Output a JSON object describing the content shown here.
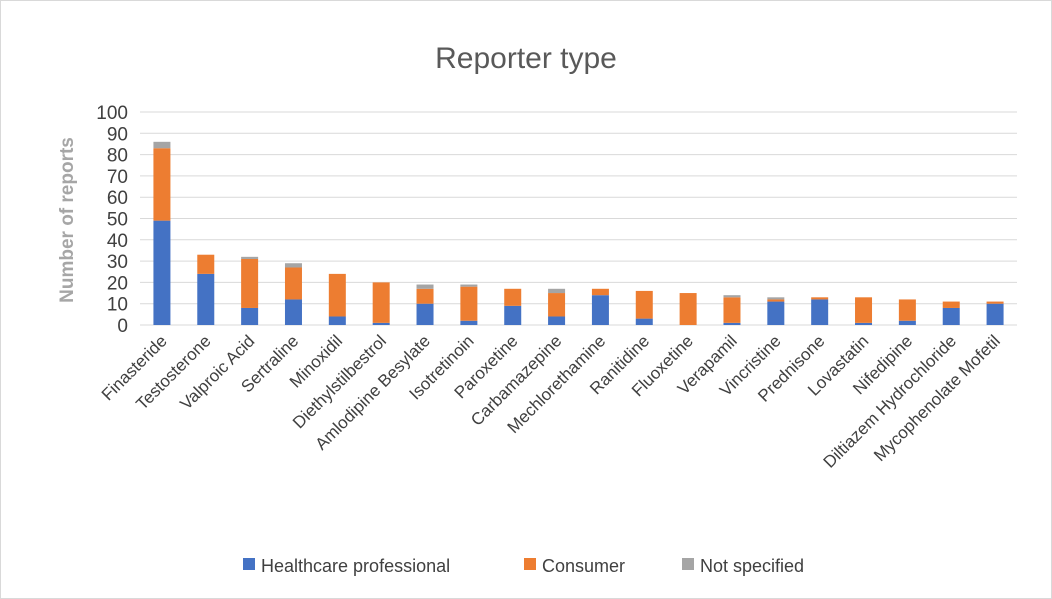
{
  "chart_data": {
    "type": "bar",
    "stacked": true,
    "title": "Reporter type",
    "xlabel": "",
    "ylabel": "Number of reports",
    "ylim": [
      0,
      100
    ],
    "yticks": [
      0,
      10,
      20,
      30,
      40,
      50,
      60,
      70,
      80,
      90,
      100
    ],
    "grid": true,
    "legend_position": "bottom",
    "categories": [
      "Finasteride",
      "Testosterone",
      "Valproic Acid",
      "Sertraline",
      "Minoxidil",
      "Diethylstilbestrol",
      "Amlodipine Besylate",
      "Isotretinoin",
      "Paroxetine",
      "Carbamazepine",
      "Mechlorethamine",
      "Ranitidine",
      "Fluoxetine",
      "Verapamil",
      "Vincristine",
      "Prednisone",
      "Lovastatin",
      "Nifedipine",
      "Diltiazem Hydrochloride",
      "Mycophenolate Mofetil"
    ],
    "series": [
      {
        "name": "Healthcare professional",
        "color": "#4472c4",
        "values": [
          49,
          24,
          8,
          12,
          4,
          1,
          10,
          2,
          9,
          4,
          14,
          3,
          0,
          1,
          11,
          12,
          1,
          2,
          8,
          10
        ]
      },
      {
        "name": "Consumer",
        "color": "#ed7d31",
        "values": [
          34,
          9,
          23,
          15,
          20,
          19,
          7,
          16,
          8,
          11,
          3,
          13,
          15,
          12,
          1,
          1,
          12,
          10,
          3,
          1
        ]
      },
      {
        "name": "Not specified",
        "color": "#a5a5a5",
        "values": [
          3,
          0,
          1,
          2,
          0,
          0,
          2,
          1,
          0,
          2,
          0,
          0,
          0,
          1,
          1,
          0,
          0,
          0,
          0,
          0
        ]
      }
    ]
  }
}
